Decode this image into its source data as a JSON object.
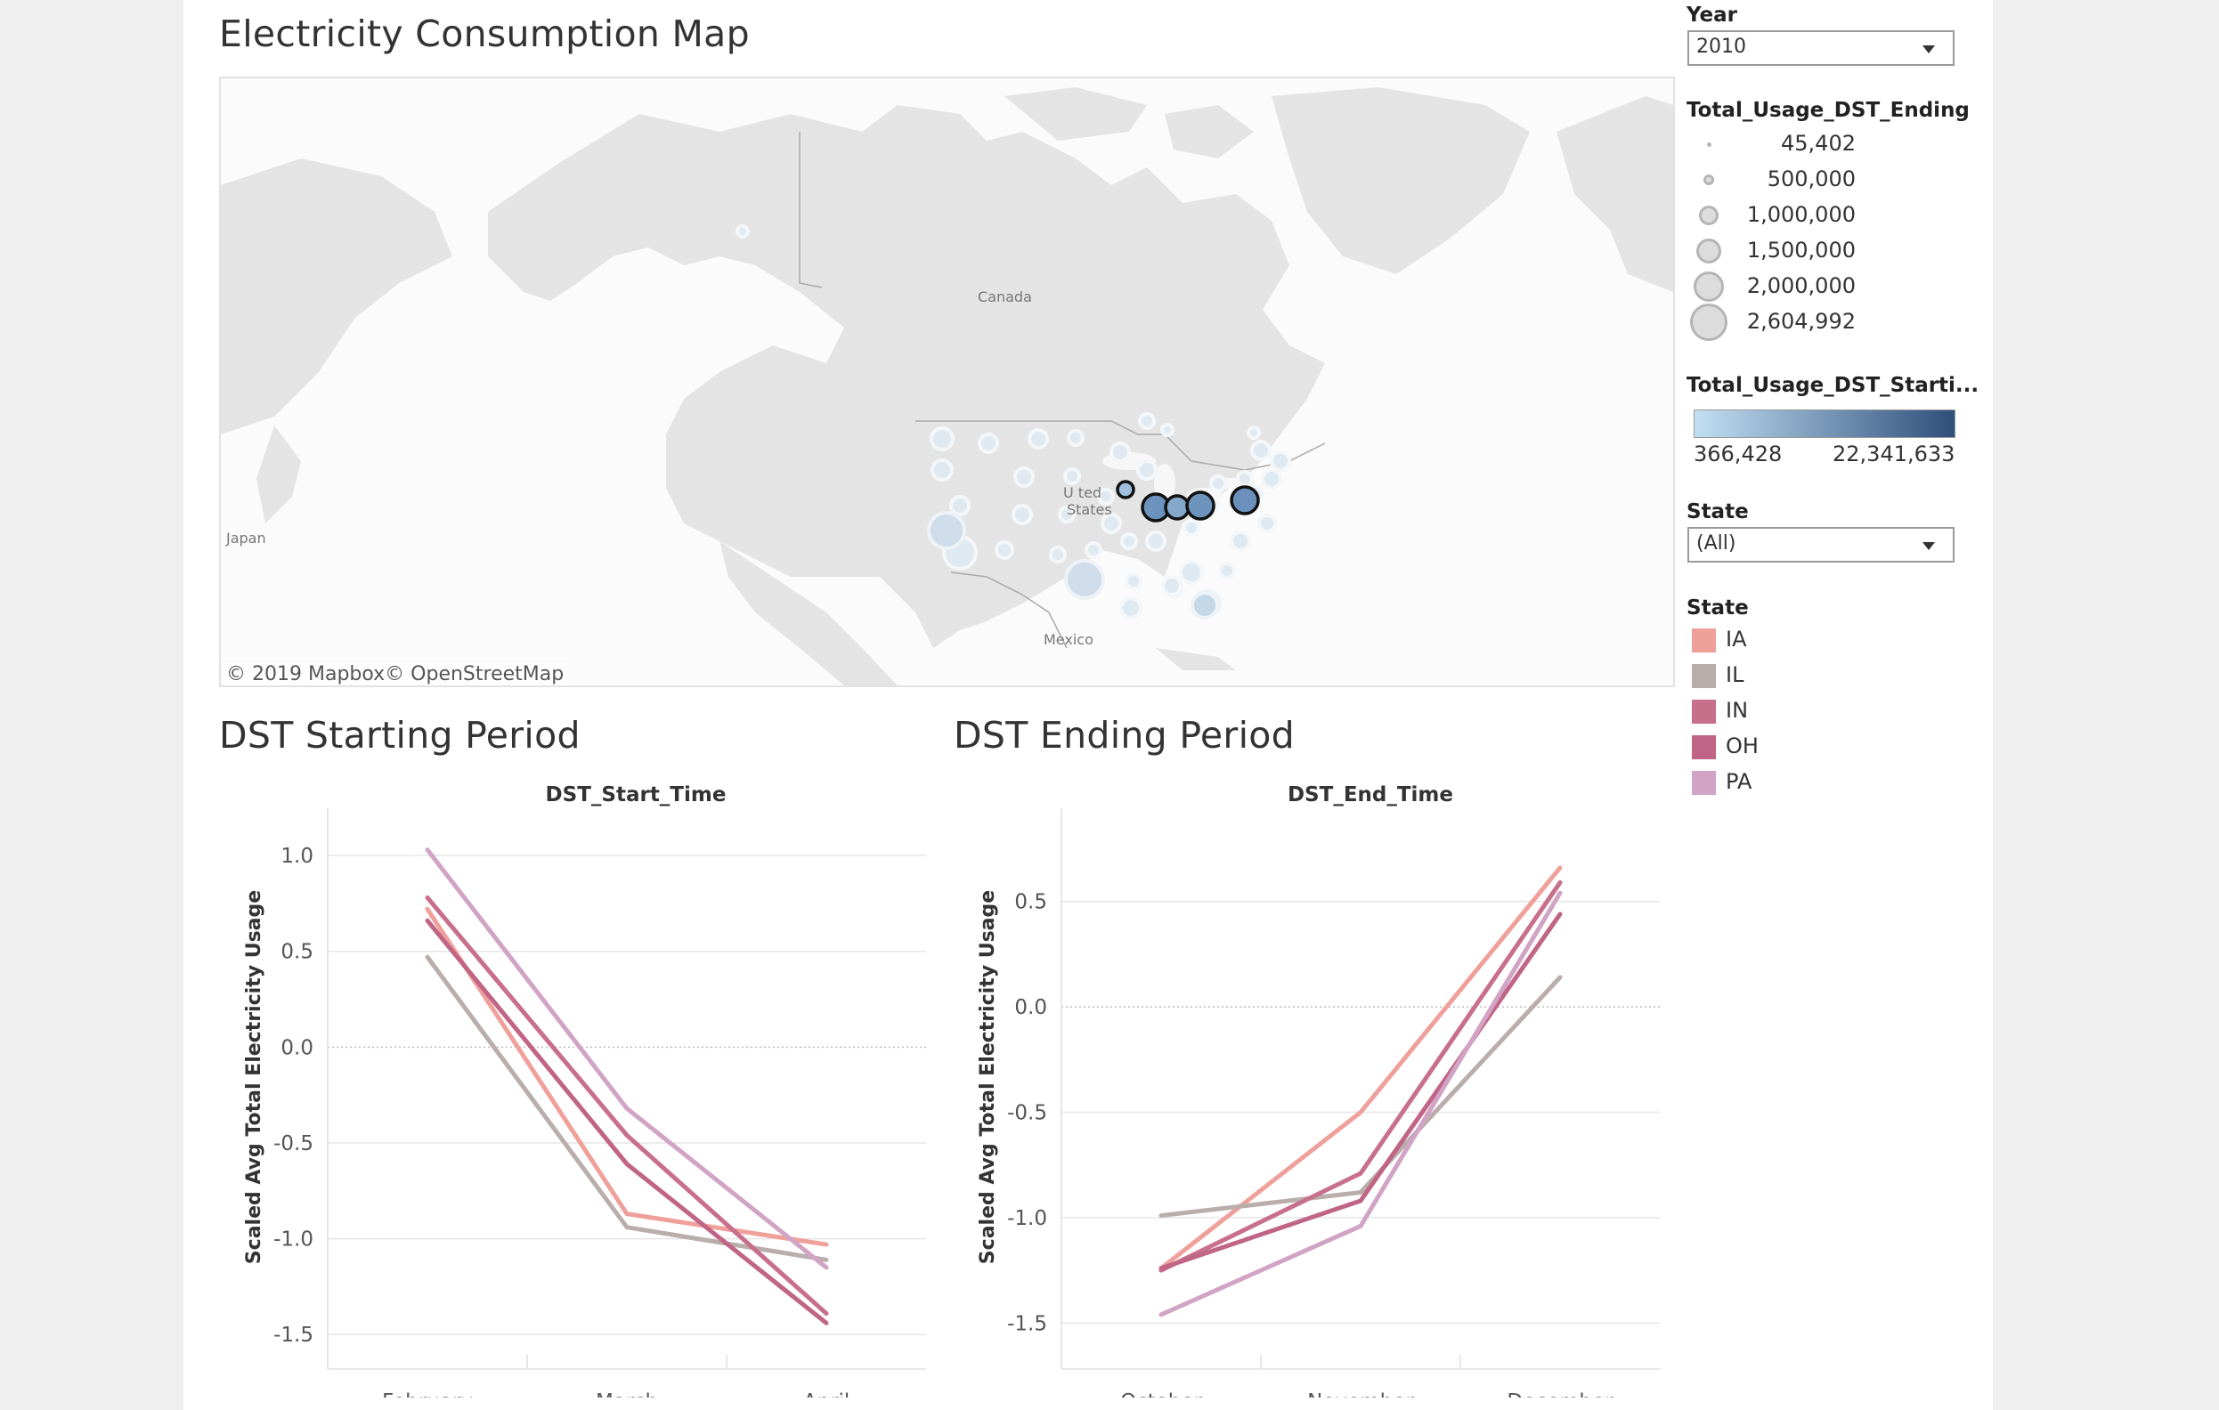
{
  "map": {
    "title": "Electricity Consumption Map",
    "labels": {
      "canada": "Canada",
      "us_line1": "U   ted",
      "us_line2": "States",
      "mexico": "Mexico",
      "japan": "Japan"
    },
    "copyright": "© 2019 Mapbox© OpenStreetMap"
  },
  "filters": {
    "year": {
      "label": "Year",
      "value": "2010"
    },
    "state": {
      "label": "State",
      "value": "(All)"
    }
  },
  "size_legend": {
    "title": "Total_Usage_DST_Ending",
    "items": [
      {
        "label": "45,402"
      },
      {
        "label": "500,000"
      },
      {
        "label": "1,000,000"
      },
      {
        "label": "1,500,000"
      },
      {
        "label": "2,000,000"
      },
      {
        "label": "2,604,992"
      }
    ]
  },
  "color_legend": {
    "title": "Total_Usage_DST_Starti...",
    "min_label": "366,428",
    "max_label": "22,341,633",
    "min_color": "#c3dff2",
    "max_color": "#2f4f7c"
  },
  "state_legend": {
    "title": "State",
    "items": [
      {
        "label": "IA",
        "color": "#f0a09b"
      },
      {
        "label": "IL",
        "color": "#b9aeab"
      },
      {
        "label": "IN",
        "color": "#c86f8c"
      },
      {
        "label": "OH",
        "color": "#c06585"
      },
      {
        "label": "PA",
        "color": "#d1a3c4"
      }
    ]
  },
  "start_chart": {
    "section_title": "DST Starting Period",
    "chart_title": "DST_Start_Time",
    "ylabel": "Scaled Avg Total Electricity Usage"
  },
  "end_chart": {
    "section_title": "DST Ending Period",
    "chart_title": "DST_End_Time",
    "ylabel": "Scaled Avg Total Electricity Usage"
  },
  "chart_data": [
    {
      "type": "line",
      "title": "DST_Start_Time",
      "ylabel": "Scaled Avg Total Electricity Usage",
      "categories": [
        "February",
        "March",
        "April"
      ],
      "yticks": [
        "1.0",
        "0.5",
        "0.0",
        "-0.5",
        "-1.0",
        "-1.5"
      ],
      "ylim": [
        -1.55,
        1.2
      ],
      "series": [
        {
          "name": "IA",
          "color": "#f0a09b",
          "values": [
            0.72,
            -0.87,
            -1.03
          ]
        },
        {
          "name": "IL",
          "color": "#b9aeab",
          "values": [
            0.47,
            -0.94,
            -1.11
          ]
        },
        {
          "name": "IN",
          "color": "#c86f8c",
          "values": [
            0.78,
            -0.46,
            -1.39
          ]
        },
        {
          "name": "OH",
          "color": "#c06585",
          "values": [
            0.66,
            -0.61,
            -1.44
          ]
        },
        {
          "name": "PA",
          "color": "#d1a3c4",
          "values": [
            1.03,
            -0.32,
            -1.15
          ]
        }
      ]
    },
    {
      "type": "line",
      "title": "DST_End_Time",
      "ylabel": "Scaled Avg Total Electricity Usage",
      "categories": [
        "October",
        "November",
        "December"
      ],
      "yticks": [
        "0.5",
        "0.0",
        "-0.5",
        "-1.0",
        "-1.5"
      ],
      "ylim": [
        -1.6,
        0.9
      ],
      "series": [
        {
          "name": "IA",
          "color": "#f0a09b",
          "values": [
            -1.24,
            -0.5,
            0.66
          ]
        },
        {
          "name": "IL",
          "color": "#b9aeab",
          "values": [
            -0.99,
            -0.88,
            0.14
          ]
        },
        {
          "name": "IN",
          "color": "#c86f8c",
          "values": [
            -1.25,
            -0.79,
            0.59
          ]
        },
        {
          "name": "OH",
          "color": "#c06585",
          "values": [
            -1.24,
            -0.92,
            0.44
          ]
        },
        {
          "name": "PA",
          "color": "#d1a3c4",
          "values": [
            -1.46,
            -1.04,
            0.54
          ]
        }
      ]
    }
  ]
}
